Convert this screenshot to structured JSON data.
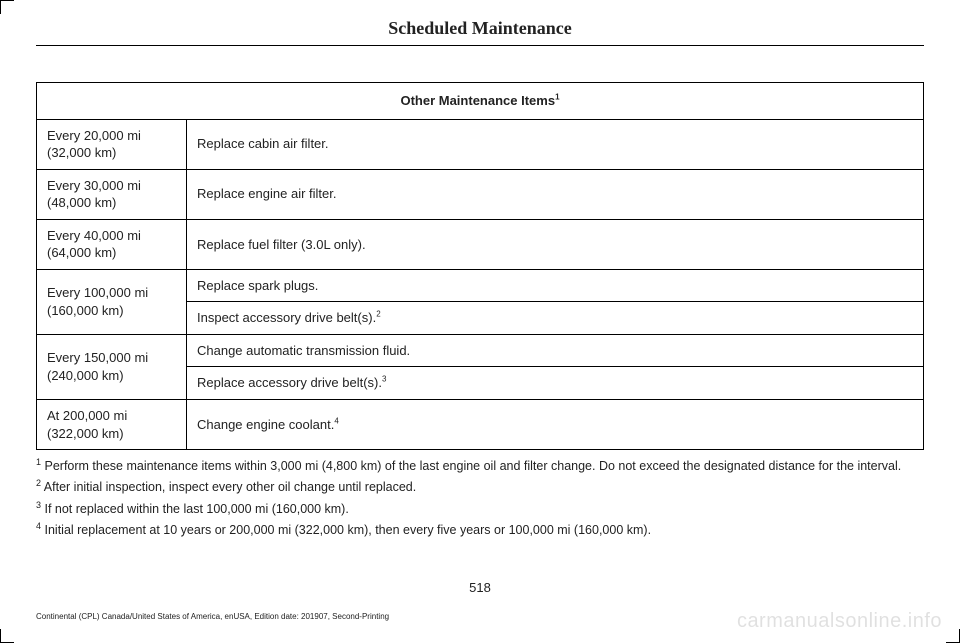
{
  "page_title": "Scheduled Maintenance",
  "table": {
    "header": "Other Maintenance Items",
    "header_sup": "1",
    "rows": [
      {
        "interval": "Every 20,000 mi (32,000 km)",
        "tasks": [
          {
            "text": "Replace cabin air filter.",
            "sup": ""
          }
        ]
      },
      {
        "interval": "Every 30,000 mi (48,000 km)",
        "tasks": [
          {
            "text": "Replace engine air filter.",
            "sup": ""
          }
        ]
      },
      {
        "interval": "Every 40,000 mi (64,000 km)",
        "tasks": [
          {
            "text": "Replace fuel filter (3.0L only).",
            "sup": ""
          }
        ]
      },
      {
        "interval": "Every 100,000 mi (160,000 km)",
        "tasks": [
          {
            "text": "Replace spark plugs.",
            "sup": ""
          },
          {
            "text": "Inspect accessory drive belt(s).",
            "sup": "2"
          }
        ]
      },
      {
        "interval": "Every 150,000 mi (240,000 km)",
        "tasks": [
          {
            "text": "Change automatic transmission fluid.",
            "sup": ""
          },
          {
            "text": "Replace accessory drive belt(s).",
            "sup": "3"
          }
        ]
      },
      {
        "interval": "At 200,000 mi (322,000 km)",
        "tasks": [
          {
            "text": "Change engine coolant.",
            "sup": "4"
          }
        ]
      }
    ]
  },
  "footnotes": [
    {
      "num": "1",
      "text": " Perform these maintenance items within 3,000 mi (4,800 km) of the last engine oil and filter change. Do not exceed the designated distance for the interval."
    },
    {
      "num": "2",
      "text": "After initial inspection, inspect every other oil change until replaced."
    },
    {
      "num": "3",
      "text": "If not replaced within the last 100,000 mi (160,000 km)."
    },
    {
      "num": "4",
      "text": "Initial replacement at 10 years or 200,000 mi (322,000 km), then every five years or 100,000 mi (160,000 km)."
    }
  ],
  "page_number": "518",
  "footer": "Continental (CPL) Canada/United States of America, enUSA, Edition date: 201907, Second-Printing",
  "watermark": "carmanualsonline.info"
}
